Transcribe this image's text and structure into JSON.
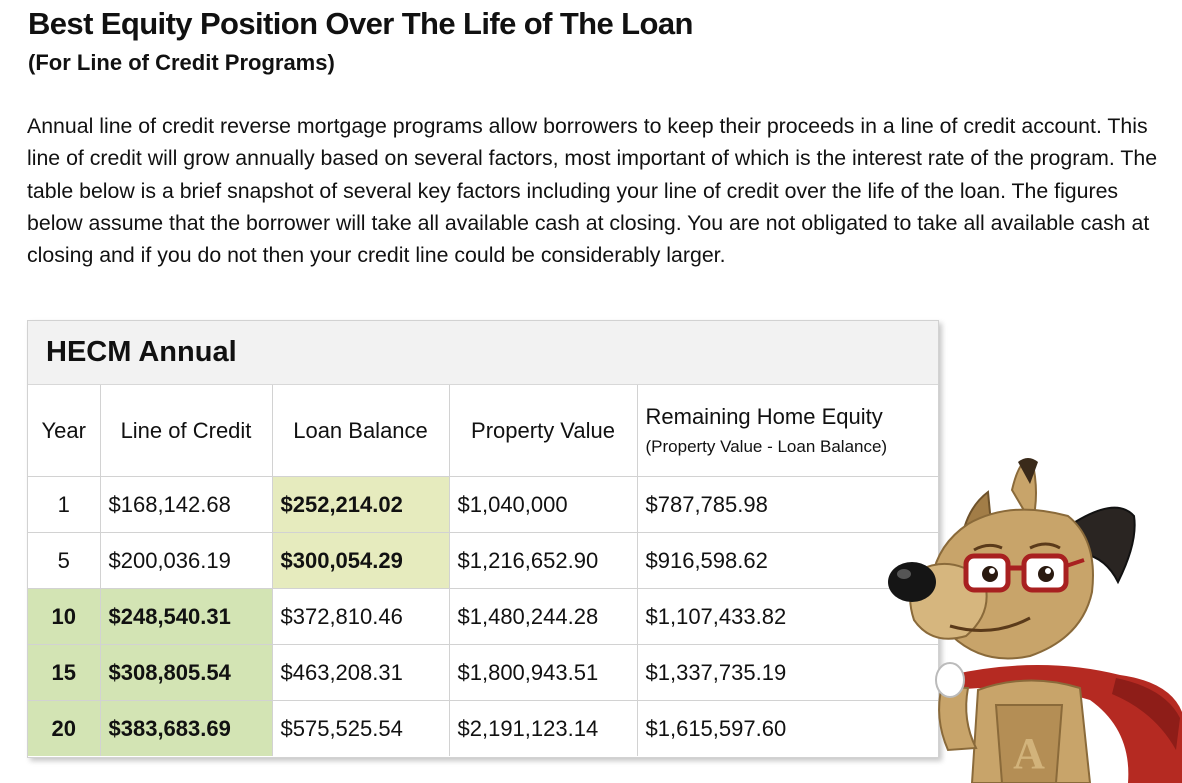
{
  "page": {
    "title": "Best Equity Position Over The Life of The Loan",
    "subtitle": "(For Line of Credit Programs)",
    "intro": "Annual line of credit reverse mortgage programs allow borrowers to keep their proceeds in a line of credit account. This line of credit will grow annually based on several factors, most important of which is the interest rate of the program. The table below is a brief snapshot of several key factors including your line of credit over the life of the loan. The figures below assume that the borrower will take all available cash at closing. You are not obligated to take all available cash at closing and if you do not then your credit line could be considerably larger."
  },
  "table": {
    "title": "HECM Annual",
    "headers": {
      "year": "Year",
      "loc": "Line of Credit",
      "balance": "Loan Balance",
      "property": "Property Value",
      "equity": "Remaining Home Equity",
      "equity_sub": "(Property Value - Loan Balance)"
    },
    "rows": [
      {
        "year": "1",
        "loc": "$168,142.68",
        "balance": "$252,214.02",
        "property": "$1,040,000",
        "equity": "$787,785.98"
      },
      {
        "year": "5",
        "loc": "$200,036.19",
        "balance": "$300,054.29",
        "property": "$1,216,652.90",
        "equity": "$916,598.62"
      },
      {
        "year": "10",
        "loc": "$248,540.31",
        "balance": "$372,810.46",
        "property": "$1,480,244.28",
        "equity": "$1,107,433.82"
      },
      {
        "year": "15",
        "loc": "$308,805.54",
        "balance": "$463,208.31",
        "property": "$1,800,943.51",
        "equity": "$1,337,735.19"
      },
      {
        "year": "20",
        "loc": "$383,683.69",
        "balance": "$575,525.54",
        "property": "$2,191,123.14",
        "equity": "$1,615,597.60"
      }
    ]
  },
  "colors": {
    "highlight_yellow": "#e6ebbe",
    "highlight_green": "#d3e4b4",
    "mascot_fur": "#c8a46a",
    "mascot_cape": "#b52a22"
  },
  "icons": {
    "mascot": "superhero-dog-mascot-icon"
  }
}
